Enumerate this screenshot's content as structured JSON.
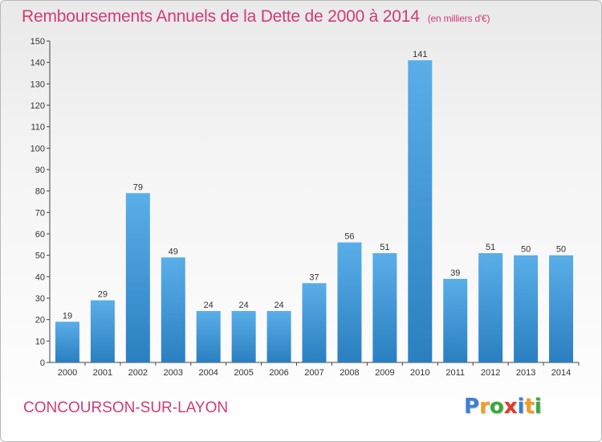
{
  "header": {
    "title": "Remboursements Annuels de la Dette de 2000 à 2014",
    "unit": "(en milliers d'€)"
  },
  "footer": {
    "town": "CONCOURSON-SUR-LAYON",
    "logo_letters": [
      "P",
      "r",
      "o",
      "x",
      "i",
      "t",
      "i"
    ],
    "logo_colors": [
      "#3a7fd5",
      "#f0a020",
      "#3aa838",
      "#e03a2a",
      "#3a7fd5",
      "#f0a020",
      "#3aa838"
    ]
  },
  "colors": {
    "bar_light": "#5aaee8",
    "bar_dark": "#2a7fc0",
    "axis": "#444444",
    "grid": "#cccccc"
  },
  "chart_data": {
    "type": "bar",
    "categories": [
      "2000",
      "2001",
      "2002",
      "2003",
      "2004",
      "2005",
      "2006",
      "2007",
      "2008",
      "2009",
      "2010",
      "2011",
      "2012",
      "2013",
      "2014"
    ],
    "values": [
      19,
      29,
      79,
      49,
      24,
      24,
      24,
      37,
      56,
      51,
      141,
      39,
      51,
      50,
      50
    ],
    "ylim": [
      0,
      150
    ],
    "yticks": [
      0,
      10,
      20,
      30,
      40,
      50,
      60,
      70,
      80,
      90,
      100,
      110,
      120,
      130,
      140,
      150
    ],
    "grid": false,
    "xlabel": "",
    "ylabel": ""
  }
}
